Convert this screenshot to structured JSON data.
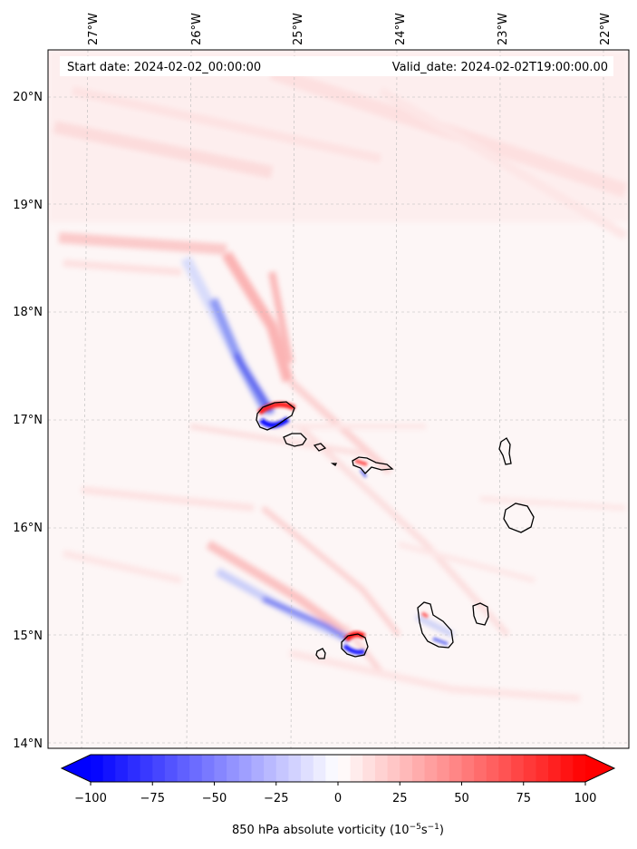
{
  "map": {
    "start_date": "Start date: 2024-02-02_00:00:00",
    "valid_date": "Valid_date: 2024-02-02T19:00:00.00",
    "lon_labels": [
      "27°W",
      "26°W",
      "25°W",
      "24°W",
      "23°W",
      "22°W"
    ],
    "lat_labels": [
      "20°N",
      "19°N",
      "18°N",
      "17°N",
      "16°N",
      "15°N",
      "14°N"
    ],
    "colors": {
      "negative": "#0000ff",
      "zero": "#ffffff",
      "positive": "#ff0000",
      "coast": "#000000",
      "grid": "#b0b0b0"
    }
  },
  "colorbar": {
    "ticks": [
      "−100",
      "−75",
      "−50",
      "−25",
      "0",
      "25",
      "50",
      "75",
      "100"
    ],
    "label": "850 hPa absolute vorticity (10",
    "label_exp1": "−5",
    "label_mid": "s",
    "label_exp2": "−1",
    "label_end": ")",
    "min": -100,
    "max": 100,
    "levels": 40
  }
}
